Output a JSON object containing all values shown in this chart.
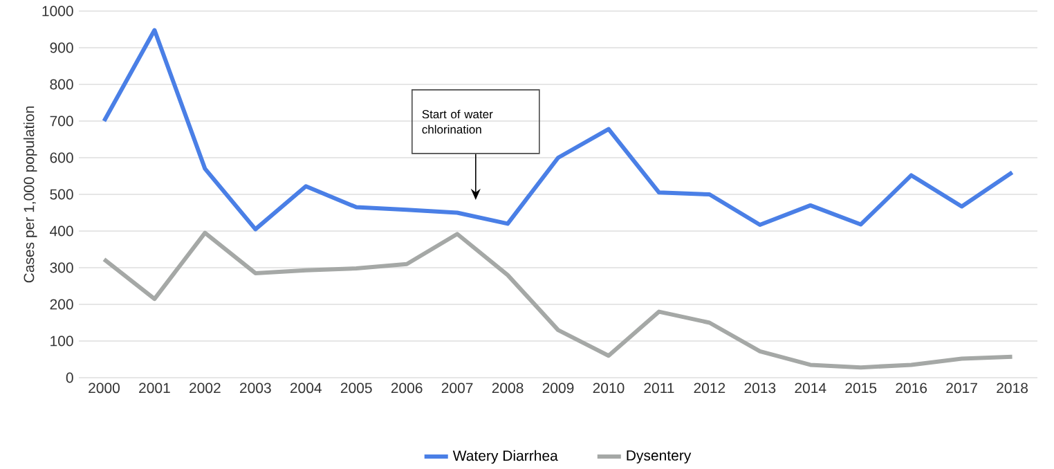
{
  "chart_data": {
    "type": "line",
    "ylabel": "Cases per 1,000 population",
    "categories": [
      "2000",
      "2001",
      "2002",
      "2003",
      "2004",
      "2005",
      "2006",
      "2007",
      "2008",
      "2009",
      "2010",
      "2011",
      "2012",
      "2013",
      "2014",
      "2015",
      "2016",
      "2017",
      "2018"
    ],
    "series": [
      {
        "name": "Watery Diarrhea",
        "color": "#4a7fe6",
        "values": [
          700,
          948,
          570,
          405,
          522,
          465,
          458,
          450,
          420,
          600,
          678,
          505,
          500,
          417,
          470,
          418,
          552,
          467,
          560
        ]
      },
      {
        "name": "Dysentery",
        "color": "#a5a8a6",
        "values": [
          323,
          215,
          395,
          285,
          293,
          298,
          310,
          392,
          280,
          130,
          60,
          180,
          150,
          72,
          35,
          28,
          35,
          52,
          57
        ]
      }
    ],
    "ylim": [
      0,
      1000
    ],
    "yticks": [
      0,
      100,
      200,
      300,
      400,
      500,
      600,
      700,
      800,
      900,
      1000
    ],
    "grid": "y",
    "legend": "bottom",
    "line_style": "solid",
    "marker": "none",
    "annotations": [
      "Start of water chlorination"
    ]
  }
}
